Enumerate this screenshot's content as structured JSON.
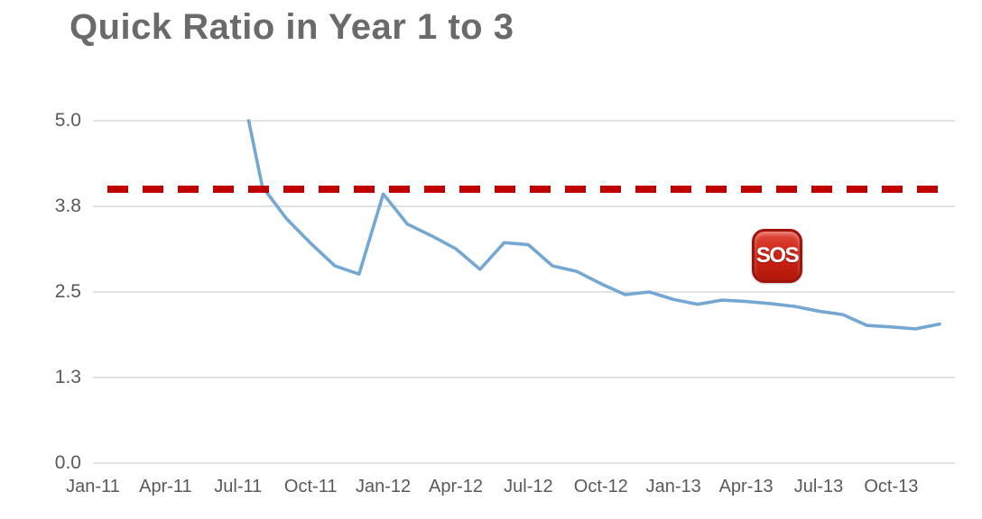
{
  "chart_data": {
    "type": "line",
    "title": "Quick Ratio in Year 1 to 3",
    "x_axis_range": [
      "Jan-11",
      "Dec-13"
    ],
    "x_tick_labels": [
      "Jan-11",
      "Apr-11",
      "Jul-11",
      "Oct-11",
      "Jan-12",
      "Apr-12",
      "Jul-12",
      "Oct-12",
      "Jan-13",
      "Apr-13",
      "Jul-13",
      "Oct-13"
    ],
    "y_ticks": [
      {
        "value": 0,
        "label": "0.0"
      },
      {
        "value": 1.25,
        "label": "1.3"
      },
      {
        "value": 2.5,
        "label": "2.5"
      },
      {
        "value": 3.75,
        "label": "3.8"
      },
      {
        "value": 5,
        "label": "5.0"
      }
    ],
    "ylim": [
      0,
      5
    ],
    "grid": "horizontal",
    "series": [
      {
        "name": "Quick Ratio",
        "color": "#74a8d3",
        "clipped_at_ymax": true,
        "x": [
          "Jul-11",
          "Aug-11",
          "Sep-11",
          "Oct-11",
          "Nov-11",
          "Dec-11",
          "Jan-12",
          "Feb-12",
          "Mar-12",
          "Apr-12",
          "May-12",
          "Jun-12",
          "Jul-12",
          "Aug-12",
          "Sep-12",
          "Oct-12",
          "Nov-12",
          "Dec-12",
          "Jan-13",
          "Feb-13",
          "Mar-13",
          "Apr-13",
          "May-13",
          "Jun-13",
          "Jul-13",
          "Aug-13",
          "Sep-13",
          "Oct-13",
          "Nov-13",
          "Dec-13"
        ],
        "values": [
          5.75,
          4.04,
          3.57,
          3.21,
          2.88,
          2.76,
          3.93,
          3.49,
          3.32,
          3.13,
          2.83,
          3.22,
          3.19,
          2.88,
          2.8,
          2.62,
          2.46,
          2.5,
          2.39,
          2.32,
          2.38,
          2.36,
          2.33,
          2.29,
          2.22,
          2.17,
          2.01,
          1.99,
          1.96,
          2.03
        ]
      }
    ],
    "threshold_line": {
      "value": 4.0,
      "style": "dashed",
      "color": "#c00000"
    },
    "annotation": {
      "label": "SOS",
      "near_x": "May-13",
      "near_y": 3.0
    }
  },
  "colors": {
    "title": "#6a6a6a",
    "axis_text": "#595959",
    "gridline": "#d9d9d9",
    "series_line": "#74a8d3",
    "threshold": "#c00000"
  }
}
